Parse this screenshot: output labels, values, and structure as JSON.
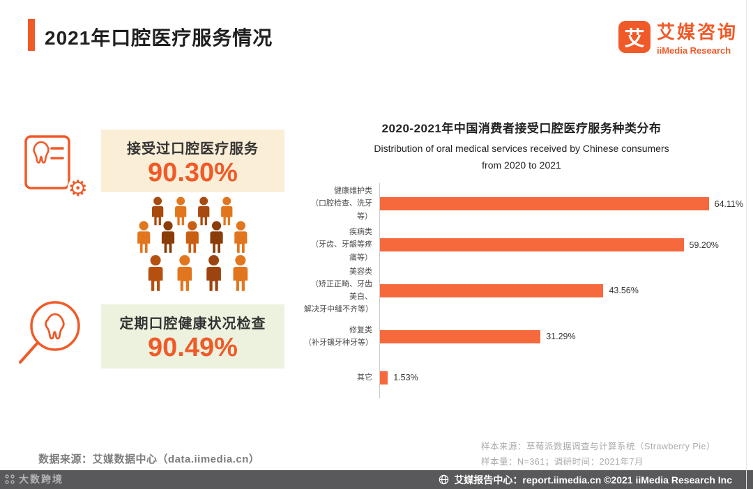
{
  "header": {
    "title": "2021年口腔医疗服务情况",
    "logo": {
      "icon_char": "艾",
      "brand_cn": "艾媒咨询",
      "brand_en": "iiMedia Research"
    }
  },
  "left_panel": {
    "stat1": {
      "label": "接受过口腔医疗服务",
      "value": "90.30%"
    },
    "stat2": {
      "label": "定期口腔健康状况检查",
      "value": "90.49%"
    }
  },
  "chart_data": {
    "type": "bar",
    "orientation": "horizontal",
    "title": "2020-2021年中国消费者接受口腔医疗服务种类分布",
    "subtitle_line1": "Distribution of oral medical services received by Chinese consumers",
    "subtitle_line2": "from 2020 to 2021",
    "xlim": [
      0,
      70
    ],
    "grid": false,
    "bar_color": "#F5693D",
    "categories": [
      {
        "label_lines": [
          "健康维护类",
          "（口腔检查、洗牙等）"
        ],
        "value": 64.11,
        "value_label": "64.11%"
      },
      {
        "label_lines": [
          "疾病类",
          "（牙齿、牙龈等疼痛等）"
        ],
        "value": 59.2,
        "value_label": "59.20%"
      },
      {
        "label_lines": [
          "美容类",
          "（矫正正畸、牙齿美白、",
          "解决牙中缝不齐等）"
        ],
        "value": 43.56,
        "value_label": "43.56%"
      },
      {
        "label_lines": [
          "修复类",
          "（补牙镶牙种牙等）"
        ],
        "value": 31.29,
        "value_label": "31.29%"
      },
      {
        "label_lines": [
          "其它"
        ],
        "value": 1.53,
        "value_label": "1.53%"
      }
    ]
  },
  "footnotes": {
    "source": "数据来源：艾媒数据中心（data.iimedia.cn）",
    "sample_source": "样本来源：草莓派数据调查与计算系统（Strawberry Pie）",
    "sample_size": "样本量：N=361；调研时间：2021年7月"
  },
  "footer": {
    "text": "艾媒报告中心：report.iimedia.cn ©2021  iiMedia Research Inc"
  },
  "watermark": {
    "text": "大数跨境"
  },
  "icons": {
    "stat1": "dental-record-icon",
    "stat2": "tooth-magnifier-icon",
    "crowd": "people-crowd-icon",
    "footer": "globe-icon",
    "watermark": "grid-logo-icon"
  },
  "colors": {
    "accent": "#F05A28",
    "bar": "#F5693D",
    "stat1_bg": "#FBEED7",
    "stat2_bg": "#ECF2DE",
    "footer_bg": "#59585A"
  }
}
